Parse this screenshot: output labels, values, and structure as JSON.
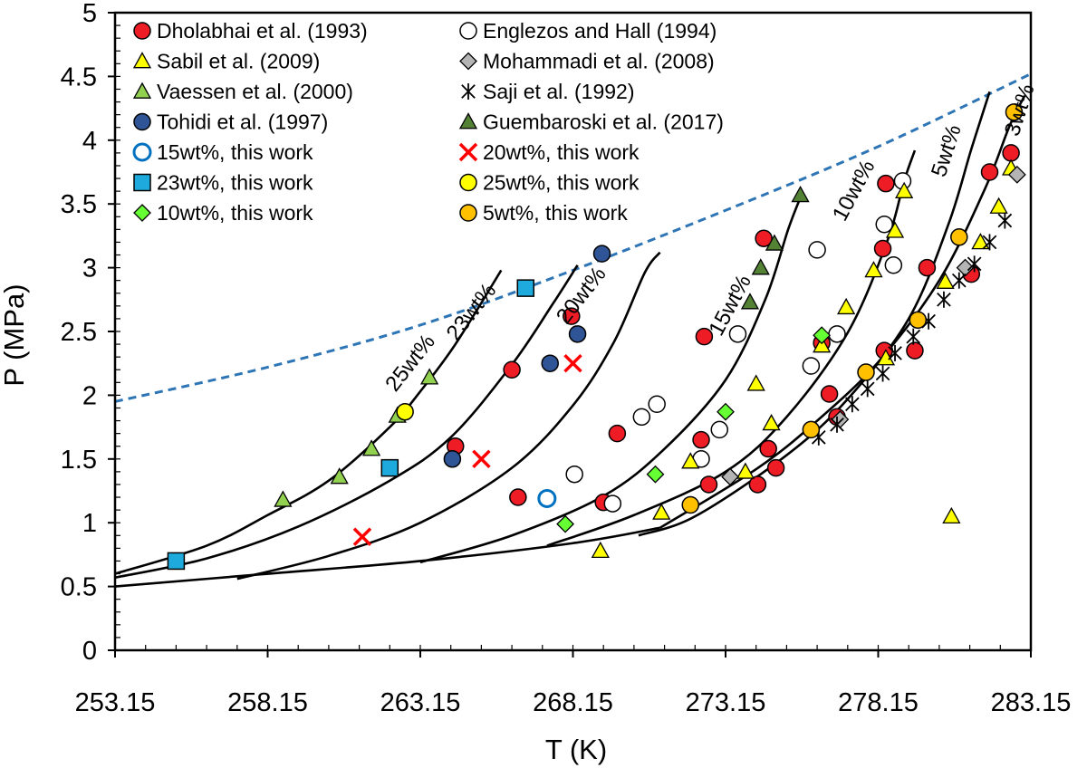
{
  "chart_data": {
    "type": "scatter",
    "xlabel": "T (K)",
    "ylabel": "P (MPa)",
    "xlim": [
      253.15,
      283.15
    ],
    "ylim": [
      0,
      5
    ],
    "x_ticks": [
      "253.15",
      "258.15",
      "263.15",
      "268.15",
      "273.15",
      "278.15",
      "283.15"
    ],
    "y_ticks": [
      "0",
      "0.5",
      "1",
      "1.5",
      "2",
      "2.5",
      "3",
      "3.5",
      "4",
      "4.5",
      "5"
    ],
    "legend_position": "top-left",
    "series": [
      {
        "name": "Dholabhai et al. (1993)",
        "marker": "circle",
        "fill": "#ee1c25",
        "stroke": "#000000",
        "points": [
          [
            264.3,
            1.6
          ],
          [
            266.15,
            2.2
          ],
          [
            266.35,
            1.2
          ],
          [
            268.1,
            2.62
          ],
          [
            269.15,
            1.16
          ],
          [
            269.6,
            1.7
          ],
          [
            272.35,
            1.65
          ],
          [
            272.45,
            2.46
          ],
          [
            272.6,
            1.3
          ],
          [
            274.2,
            1.3
          ],
          [
            274.4,
            3.23
          ],
          [
            274.55,
            1.58
          ],
          [
            274.8,
            1.43
          ],
          [
            276.3,
            2.41
          ],
          [
            276.55,
            2.01
          ],
          [
            276.8,
            1.83
          ],
          [
            278.3,
            3.15
          ],
          [
            278.35,
            2.35
          ],
          [
            278.4,
            3.66
          ],
          [
            279.35,
            2.35
          ],
          [
            279.75,
            3.0
          ],
          [
            281.2,
            2.95
          ],
          [
            281.8,
            3.75
          ],
          [
            282.5,
            3.9
          ]
        ]
      },
      {
        "name": "Englezos and Hall (1994)",
        "marker": "circle",
        "fill": "#ffffff",
        "stroke": "#000000",
        "points": [
          [
            268.2,
            1.38
          ],
          [
            269.45,
            1.15
          ],
          [
            270.4,
            1.83
          ],
          [
            270.9,
            1.93
          ],
          [
            272.35,
            1.5
          ],
          [
            272.95,
            1.73
          ],
          [
            273.55,
            2.48
          ],
          [
            275.95,
            2.23
          ],
          [
            276.15,
            3.14
          ],
          [
            276.8,
            2.48
          ],
          [
            278.35,
            3.34
          ],
          [
            278.65,
            3.02
          ],
          [
            278.95,
            3.68
          ]
        ]
      },
      {
        "name": "Sabil et al. (2009)",
        "marker": "triangle",
        "fill": "#ffff00",
        "stroke": "#000000",
        "points": [
          [
            269.05,
            0.78
          ],
          [
            271.05,
            1.08
          ],
          [
            272.0,
            1.48
          ],
          [
            273.8,
            1.4
          ],
          [
            274.15,
            2.09
          ],
          [
            274.65,
            1.78
          ],
          [
            276.3,
            2.39
          ],
          [
            277.1,
            2.69
          ],
          [
            278.0,
            2.98
          ],
          [
            278.4,
            2.29
          ],
          [
            278.7,
            3.29
          ],
          [
            279.0,
            3.6
          ],
          [
            280.35,
            2.89
          ],
          [
            280.55,
            1.05
          ],
          [
            281.5,
            3.2
          ],
          [
            282.1,
            3.48
          ],
          [
            282.5,
            3.78
          ]
        ]
      },
      {
        "name": "Mohammadi et al. (2008)",
        "marker": "diamond",
        "fill": "#b4b4b4",
        "stroke": "#000000",
        "points": [
          [
            273.3,
            1.36
          ],
          [
            276.9,
            1.81
          ],
          [
            281.0,
            3.0
          ],
          [
            282.7,
            3.73
          ]
        ]
      },
      {
        "name": "Vaessen et al. (2000)",
        "marker": "triangle",
        "fill": "#92d050",
        "stroke": "#000000",
        "points": [
          [
            258.65,
            1.18
          ],
          [
            260.5,
            1.36
          ],
          [
            261.55,
            1.58
          ],
          [
            262.4,
            1.84
          ],
          [
            263.45,
            2.14
          ]
        ]
      },
      {
        "name": "Saji et al. (1992)",
        "marker": "star",
        "fill": "#000000",
        "stroke": "#000000",
        "points": [
          [
            276.2,
            1.67
          ],
          [
            276.8,
            1.77
          ],
          [
            277.3,
            1.93
          ],
          [
            277.8,
            2.05
          ],
          [
            278.3,
            2.17
          ],
          [
            278.7,
            2.33
          ],
          [
            279.3,
            2.46
          ],
          [
            279.8,
            2.58
          ],
          [
            280.3,
            2.75
          ],
          [
            280.8,
            2.9
          ],
          [
            281.3,
            3.03
          ],
          [
            281.8,
            3.2
          ],
          [
            282.3,
            3.37
          ]
        ]
      },
      {
        "name": "Tohidi et al. (1997)",
        "marker": "circle",
        "fill": "#2f5597",
        "stroke": "#000000",
        "points": [
          [
            264.2,
            1.5
          ],
          [
            267.4,
            2.25
          ],
          [
            268.3,
            2.48
          ],
          [
            269.1,
            3.11
          ]
        ]
      },
      {
        "name": "Guembaroski et al. (2017)",
        "marker": "triangle",
        "fill": "#548235",
        "stroke": "#000000",
        "points": [
          [
            273.95,
            2.73
          ],
          [
            274.3,
            3.0
          ],
          [
            274.75,
            3.19
          ],
          [
            275.6,
            3.57
          ]
        ]
      },
      {
        "name": "15wt%, this work",
        "marker": "circle-open",
        "fill": "#ffffff",
        "stroke": "#0070c0",
        "points": [
          [
            267.3,
            1.19
          ]
        ]
      },
      {
        "name": "20wt%, this work",
        "marker": "x",
        "fill": "#ff0000",
        "stroke": "#ff0000",
        "points": [
          [
            261.25,
            0.89
          ],
          [
            265.15,
            1.5
          ],
          [
            268.15,
            2.25
          ]
        ]
      },
      {
        "name": "23wt%, this work",
        "marker": "square",
        "fill": "#1eaadc",
        "stroke": "#000000",
        "points": [
          [
            255.15,
            0.7
          ],
          [
            262.15,
            1.43
          ],
          [
            266.6,
            2.84
          ]
        ]
      },
      {
        "name": "25wt%, this work",
        "marker": "circle",
        "fill": "#ffff00",
        "stroke": "#000000",
        "points": [
          [
            262.65,
            1.87
          ]
        ]
      },
      {
        "name": "10wt%, this work",
        "marker": "diamond",
        "fill": "#66ff33",
        "stroke": "#000000",
        "points": [
          [
            267.9,
            0.99
          ],
          [
            270.85,
            1.38
          ],
          [
            273.15,
            1.87
          ],
          [
            276.3,
            2.47
          ]
        ]
      },
      {
        "name": "5wt%, this work",
        "marker": "circle",
        "fill": "#ffc000",
        "stroke": "#000000",
        "points": [
          [
            272.0,
            1.14
          ],
          [
            275.95,
            1.73
          ],
          [
            277.75,
            2.18
          ],
          [
            279.45,
            2.59
          ],
          [
            280.8,
            3.24
          ],
          [
            282.6,
            4.22
          ]
        ]
      }
    ],
    "lines": [
      {
        "name": "dashed boundary",
        "style": "dashed",
        "color": "#2e75b6",
        "points": [
          [
            253.15,
            1.95
          ],
          [
            258.15,
            2.22
          ],
          [
            263.15,
            2.55
          ],
          [
            268.15,
            2.98
          ],
          [
            273.15,
            3.45
          ],
          [
            278.15,
            3.95
          ],
          [
            283.15,
            4.52
          ]
        ]
      },
      {
        "name": "ice line",
        "style": "solid",
        "color": "#000000",
        "points": [
          [
            253.15,
            0.5
          ],
          [
            258.15,
            0.6
          ],
          [
            263.15,
            0.7
          ],
          [
            268.15,
            0.84
          ],
          [
            271.0,
            0.96
          ]
        ]
      },
      {
        "name": "25wt% curve",
        "style": "solid",
        "color": "#000000",
        "points": [
          [
            253.15,
            0.6
          ],
          [
            256.15,
            0.82
          ],
          [
            258.15,
            1.06
          ],
          [
            260.15,
            1.33
          ],
          [
            262.15,
            1.75
          ],
          [
            263.15,
            2.03
          ],
          [
            264.3,
            2.4
          ],
          [
            265.8,
            2.98
          ]
        ]
      },
      {
        "name": "23wt% curve",
        "style": "solid",
        "color": "#000000",
        "points": [
          [
            253.15,
            0.57
          ],
          [
            256.15,
            0.72
          ],
          [
            259.15,
            0.97
          ],
          [
            262.15,
            1.33
          ],
          [
            264.15,
            1.67
          ],
          [
            266.15,
            2.24
          ],
          [
            267.5,
            2.72
          ],
          [
            268.3,
            3.02
          ]
        ]
      },
      {
        "name": "20wt% curve",
        "style": "solid",
        "color": "#000000",
        "points": [
          [
            257.15,
            0.56
          ],
          [
            260.15,
            0.74
          ],
          [
            263.15,
            1.0
          ],
          [
            266.15,
            1.43
          ],
          [
            268.15,
            1.92
          ],
          [
            269.5,
            2.42
          ],
          [
            270.5,
            2.96
          ],
          [
            271.0,
            3.12
          ]
        ]
      },
      {
        "name": "15wt% curve",
        "style": "solid",
        "color": "#000000",
        "points": [
          [
            263.15,
            0.69
          ],
          [
            266.15,
            0.9
          ],
          [
            269.15,
            1.21
          ],
          [
            271.15,
            1.58
          ],
          [
            273.15,
            2.12
          ],
          [
            274.45,
            2.75
          ],
          [
            275.2,
            3.3
          ],
          [
            275.6,
            3.55
          ]
        ]
      },
      {
        "name": "10wt% curve",
        "style": "solid",
        "color": "#000000",
        "points": [
          [
            267.3,
            0.82
          ],
          [
            270.15,
            1.06
          ],
          [
            273.15,
            1.4
          ],
          [
            275.15,
            1.83
          ],
          [
            277.15,
            2.49
          ],
          [
            278.45,
            3.21
          ],
          [
            279.0,
            3.68
          ],
          [
            279.35,
            3.92
          ]
        ]
      },
      {
        "name": "5wt% curve",
        "style": "solid",
        "color": "#000000",
        "points": [
          [
            270.3,
            0.9
          ],
          [
            272.15,
            1.05
          ],
          [
            275.15,
            1.53
          ],
          [
            277.15,
            1.97
          ],
          [
            279.15,
            2.6
          ],
          [
            280.45,
            3.34
          ],
          [
            281.2,
            3.93
          ],
          [
            281.8,
            4.38
          ]
        ]
      },
      {
        "name": "3wt% curve",
        "style": "solid",
        "color": "#000000",
        "points": [
          [
            271.0,
            0.96
          ],
          [
            274.15,
            1.42
          ],
          [
            276.15,
            1.8
          ],
          [
            278.15,
            2.26
          ],
          [
            280.15,
            2.9
          ],
          [
            281.65,
            3.62
          ],
          [
            282.45,
            4.11
          ],
          [
            282.95,
            4.35
          ]
        ]
      }
    ],
    "curve_labels": [
      {
        "text": "25wt%",
        "x": 263.0,
        "y": 2.22,
        "angle": -52
      },
      {
        "text": "23wt%",
        "x": 265.0,
        "y": 2.62,
        "angle": -52
      },
      {
        "text": "20wt%",
        "x": 268.6,
        "y": 2.75,
        "angle": -52
      },
      {
        "text": "15wt%",
        "x": 273.5,
        "y": 2.68,
        "angle": -62
      },
      {
        "text": "10wt%",
        "x": 277.55,
        "y": 3.58,
        "angle": -62
      },
      {
        "text": "5wt%",
        "x": 280.6,
        "y": 3.9,
        "angle": -72
      },
      {
        "text": "3wt%",
        "x": 283.0,
        "y": 4.22,
        "angle": -72
      }
    ]
  }
}
